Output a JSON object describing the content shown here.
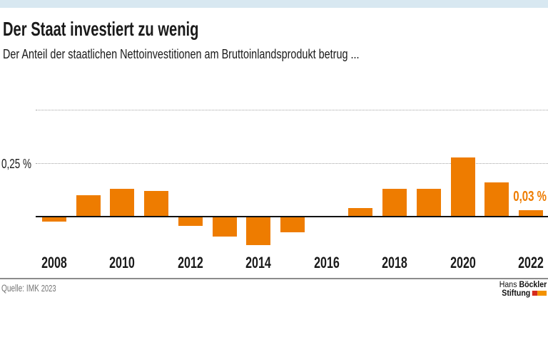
{
  "page": {
    "background": "#ffffff",
    "topbar_color": "#d8e8f1",
    "text_color": "#1a1a1a",
    "gridline_color": "#a3a3a3"
  },
  "header": {
    "title": "Der Staat investiert zu wenig",
    "subtitle": "Der Anteil der staatlichen Nettoinvestitionen am Bruttoinlandsprodukt betrug ..."
  },
  "chart_data": {
    "type": "bar",
    "title": "Der Staat investiert zu wenig",
    "subtitle": "Der Anteil der staatlichen Nettoinvestitionen am Bruttoinlandsprodukt betrug ...",
    "unit": "%",
    "categories": [
      "2008",
      "2009",
      "2010",
      "2011",
      "2012",
      "2013",
      "2014",
      "2015",
      "2016",
      "2017",
      "2018",
      "2019",
      "2020",
      "2021",
      "2022"
    ],
    "values": [
      -0.02,
      0.1,
      0.13,
      0.12,
      -0.04,
      -0.09,
      -0.13,
      -0.07,
      0.0,
      0.04,
      0.13,
      0.13,
      0.28,
      0.16,
      0.03
    ],
    "bar_color": "#ee7c00",
    "ylim": [
      -0.15,
      0.55
    ],
    "grid": "dotted horizontal",
    "gridlines": [
      {
        "value": 0.25,
        "label": "0,25 %"
      },
      {
        "value": 0.5,
        "label": ""
      }
    ],
    "x_tick_labels": [
      "2008",
      "2010",
      "2012",
      "2014",
      "2016",
      "2018",
      "2020",
      "2022"
    ],
    "annotation": {
      "text": "0,03 %",
      "year": "2022",
      "color": "#ee7c00"
    }
  },
  "footer": {
    "source": "Quelle: IMK",
    "source_year": "2023",
    "logo": {
      "name_regular": "Hans",
      "name_bold": "Böckler",
      "line2": "Stiftung",
      "mark_colors": [
        "#d52b1e",
        "#f39200"
      ]
    }
  }
}
